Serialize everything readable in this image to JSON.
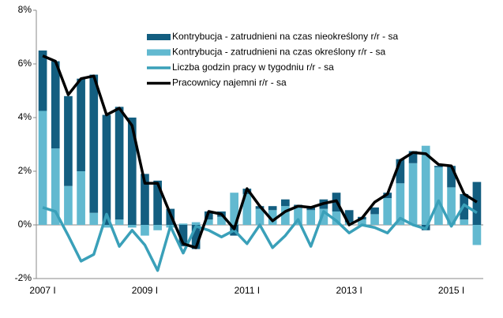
{
  "chart_data": {
    "type": "stacked-bar-line",
    "categories": [
      "2007 I",
      null,
      null,
      null,
      null,
      null,
      null,
      null,
      "2009 I",
      null,
      null,
      null,
      null,
      null,
      null,
      null,
      "2011 I",
      null,
      null,
      null,
      null,
      null,
      null,
      null,
      "2013 I",
      null,
      null,
      null,
      null,
      null,
      null,
      null,
      "2015 I",
      null,
      null
    ],
    "series": [
      {
        "name": "Kontrybucja - zatrudnieni na czas nieokreślony r/r - sa",
        "kind": "bar",
        "color": "#135e80",
        "values": [
          2.25,
          3.25,
          3.35,
          3.45,
          5.15,
          4.1,
          4.2,
          4.0,
          1.9,
          1.65,
          0.6,
          -0.8,
          -0.9,
          0.3,
          0.2,
          -0.4,
          0.2,
          0.1,
          0.15,
          0.25,
          0.1,
          0.1,
          0.35,
          0.7,
          0.45,
          0.1,
          0.25,
          0.2,
          0.9,
          0.45,
          -0.2,
          0.05,
          0.8,
          0.95,
          1.6
        ]
      },
      {
        "name": "Kontrybucja - zatrudnieni na czas określony r/r - sa",
        "kind": "bar",
        "color": "#62b9d0",
        "values": [
          4.25,
          2.85,
          1.45,
          2.0,
          0.45,
          -0.1,
          0.2,
          -0.1,
          -0.4,
          -0.2,
          -0.1,
          0.05,
          0.1,
          0.2,
          0.3,
          1.2,
          1.15,
          0.6,
          0.55,
          0.7,
          0.65,
          0.55,
          0.6,
          0.5,
          0.1,
          0.2,
          0.4,
          1.0,
          1.55,
          2.3,
          2.95,
          2.15,
          1.4,
          0.2,
          -0.75
        ]
      },
      {
        "name": "Liczba godzin pracy w tygodniu r/r - sa",
        "kind": "line",
        "color": "#3aa0b9",
        "values": [
          0.65,
          0.5,
          -0.4,
          -1.35,
          -1.1,
          0.4,
          -0.8,
          -0.2,
          -0.75,
          -1.7,
          -0.05,
          -1.05,
          -0.05,
          -0.2,
          -0.45,
          -0.2,
          -0.7,
          0.0,
          -0.85,
          -0.4,
          0.2,
          -0.8,
          0.5,
          0.15,
          -0.3,
          0.0,
          -0.1,
          -0.3,
          0.25,
          0.0,
          -0.15,
          0.9,
          -0.05,
          0.75,
          0.45
        ]
      },
      {
        "name": "Pracownicy najemni r/r - sa",
        "kind": "line",
        "color": "#000000",
        "values": [
          6.3,
          6.1,
          4.85,
          5.45,
          5.55,
          4.1,
          4.35,
          3.7,
          1.55,
          1.55,
          0.4,
          -0.7,
          -0.85,
          0.5,
          0.4,
          -0.15,
          1.35,
          0.7,
          0.15,
          0.5,
          0.7,
          0.65,
          0.8,
          0.9,
          0.0,
          0.25,
          0.85,
          1.15,
          2.4,
          2.7,
          2.65,
          2.25,
          2.2,
          1.15,
          0.85
        ]
      }
    ],
    "ylim": [
      -2,
      8
    ],
    "yticks": [
      {
        "value": -2,
        "label": "-2%"
      },
      {
        "value": 0,
        "label": "0%"
      },
      {
        "value": 2,
        "label": "2%"
      },
      {
        "value": 4,
        "label": "4%"
      },
      {
        "value": 6,
        "label": "6%"
      },
      {
        "value": 8,
        "label": "8%"
      }
    ],
    "grid": false
  }
}
